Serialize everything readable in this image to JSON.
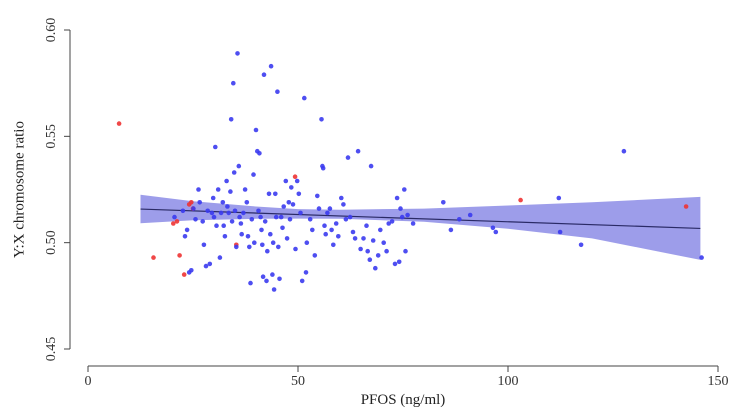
{
  "chart_data": {
    "type": "scatter",
    "xlabel": "PFOS (ng/ml)",
    "ylabel": "Y:X chromosome ratio",
    "xlim": [
      0,
      150
    ],
    "ylim": [
      0.45,
      0.6
    ],
    "xticks": [
      0,
      50,
      100,
      150
    ],
    "yticks": [
      0.45,
      0.5,
      0.55,
      0.6
    ],
    "xtick_labels": [
      "0",
      "50",
      "100",
      "150"
    ],
    "ytick_labels": [
      "0.45",
      "0.50",
      "0.55",
      "0.60"
    ],
    "grid": false,
    "colors": {
      "blue": "#3b3bf0",
      "red": "#ee3333",
      "band": "#8c8ce6",
      "line": "#2a2a66"
    },
    "series": [
      {
        "color": "red",
        "points": [
          [
            7.4,
            0.556
          ],
          [
            15.6,
            0.493
          ],
          [
            20.3,
            0.509
          ],
          [
            21.2,
            0.51
          ],
          [
            21.8,
            0.494
          ],
          [
            22.9,
            0.485
          ],
          [
            24.1,
            0.518
          ],
          [
            24.6,
            0.519
          ],
          [
            25.0,
            0.516
          ],
          [
            35.3,
            0.499
          ],
          [
            49.3,
            0.531
          ],
          [
            103.0,
            0.52
          ],
          [
            142.4,
            0.517
          ]
        ]
      },
      {
        "color": "blue",
        "points": [
          [
            20.6,
            0.512
          ],
          [
            22.6,
            0.515
          ],
          [
            23.1,
            0.503
          ],
          [
            23.6,
            0.506
          ],
          [
            24.1,
            0.486
          ],
          [
            24.6,
            0.487
          ],
          [
            25.1,
            0.516
          ],
          [
            25.6,
            0.511
          ],
          [
            26.3,
            0.525
          ],
          [
            26.6,
            0.519
          ],
          [
            27.3,
            0.51
          ],
          [
            27.6,
            0.499
          ],
          [
            28.1,
            0.489
          ],
          [
            28.5,
            0.515
          ],
          [
            29.0,
            0.49
          ],
          [
            29.5,
            0.514
          ],
          [
            29.8,
            0.521
          ],
          [
            30.0,
            0.512
          ],
          [
            30.3,
            0.545
          ],
          [
            30.6,
            0.508
          ],
          [
            31.0,
            0.525
          ],
          [
            31.4,
            0.493
          ],
          [
            31.7,
            0.514
          ],
          [
            32.1,
            0.519
          ],
          [
            32.3,
            0.508
          ],
          [
            32.6,
            0.503
          ],
          [
            33.0,
            0.529
          ],
          [
            33.2,
            0.517
          ],
          [
            33.5,
            0.514
          ],
          [
            33.9,
            0.524
          ],
          [
            34.1,
            0.558
          ],
          [
            34.3,
            0.51
          ],
          [
            34.6,
            0.575
          ],
          [
            34.8,
            0.533
          ],
          [
            35.0,
            0.515
          ],
          [
            35.3,
            0.498
          ],
          [
            35.6,
            0.589
          ],
          [
            35.9,
            0.536
          ],
          [
            36.1,
            0.512
          ],
          [
            36.4,
            0.509
          ],
          [
            36.6,
            0.504
          ],
          [
            37.0,
            0.514
          ],
          [
            37.4,
            0.525
          ],
          [
            37.8,
            0.519
          ],
          [
            38.1,
            0.503
          ],
          [
            38.4,
            0.498
          ],
          [
            38.7,
            0.481
          ],
          [
            39.0,
            0.511
          ],
          [
            39.4,
            0.532
          ],
          [
            39.6,
            0.5
          ],
          [
            40.0,
            0.553
          ],
          [
            40.3,
            0.543
          ],
          [
            40.6,
            0.515
          ],
          [
            40.8,
            0.542
          ],
          [
            41.1,
            0.512
          ],
          [
            41.3,
            0.506
          ],
          [
            41.5,
            0.499
          ],
          [
            41.7,
            0.484
          ],
          [
            41.9,
            0.579
          ],
          [
            42.2,
            0.51
          ],
          [
            42.5,
            0.482
          ],
          [
            42.7,
            0.496
          ],
          [
            43.1,
            0.523
          ],
          [
            43.4,
            0.504
          ],
          [
            43.6,
            0.583
          ],
          [
            43.9,
            0.485
          ],
          [
            44.1,
            0.5
          ],
          [
            44.3,
            0.478
          ],
          [
            44.6,
            0.523
          ],
          [
            44.8,
            0.512
          ],
          [
            45.1,
            0.571
          ],
          [
            45.3,
            0.498
          ],
          [
            45.6,
            0.483
          ],
          [
            46.0,
            0.512
          ],
          [
            46.3,
            0.507
          ],
          [
            46.6,
            0.517
          ],
          [
            47.1,
            0.529
          ],
          [
            47.4,
            0.502
          ],
          [
            47.8,
            0.519
          ],
          [
            48.1,
            0.511
          ],
          [
            48.4,
            0.526
          ],
          [
            48.8,
            0.518
          ],
          [
            49.4,
            0.497
          ],
          [
            49.8,
            0.529
          ],
          [
            50.2,
            0.523
          ],
          [
            50.6,
            0.514
          ],
          [
            51.0,
            0.482
          ],
          [
            51.5,
            0.568
          ],
          [
            51.9,
            0.486
          ],
          [
            52.1,
            0.5
          ],
          [
            52.9,
            0.511
          ],
          [
            53.4,
            0.506
          ],
          [
            54.0,
            0.494
          ],
          [
            54.6,
            0.522
          ],
          [
            55.0,
            0.516
          ],
          [
            55.6,
            0.558
          ],
          [
            55.8,
            0.536
          ],
          [
            56.0,
            0.535
          ],
          [
            56.3,
            0.508
          ],
          [
            56.6,
            0.504
          ],
          [
            57.0,
            0.514
          ],
          [
            57.6,
            0.516
          ],
          [
            58.0,
            0.506
          ],
          [
            58.4,
            0.499
          ],
          [
            59.1,
            0.509
          ],
          [
            59.6,
            0.503
          ],
          [
            60.3,
            0.521
          ],
          [
            60.8,
            0.518
          ],
          [
            61.4,
            0.511
          ],
          [
            61.9,
            0.54
          ],
          [
            62.4,
            0.512
          ],
          [
            63.1,
            0.505
          ],
          [
            63.6,
            0.502
          ],
          [
            64.3,
            0.543
          ],
          [
            64.9,
            0.497
          ],
          [
            65.6,
            0.502
          ],
          [
            66.3,
            0.508
          ],
          [
            66.6,
            0.496
          ],
          [
            67.1,
            0.492
          ],
          [
            67.4,
            0.536
          ],
          [
            67.9,
            0.501
          ],
          [
            68.4,
            0.488
          ],
          [
            69.1,
            0.494
          ],
          [
            69.6,
            0.506
          ],
          [
            70.4,
            0.5
          ],
          [
            71.1,
            0.496
          ],
          [
            71.6,
            0.509
          ],
          [
            72.4,
            0.51
          ],
          [
            73.1,
            0.49
          ],
          [
            73.6,
            0.521
          ],
          [
            74.1,
            0.491
          ],
          [
            74.4,
            0.516
          ],
          [
            74.8,
            0.512
          ],
          [
            75.3,
            0.525
          ],
          [
            75.6,
            0.496
          ],
          [
            76.1,
            0.513
          ],
          [
            77.4,
            0.509
          ],
          [
            84.6,
            0.519
          ],
          [
            86.4,
            0.506
          ],
          [
            88.4,
            0.511
          ],
          [
            91.0,
            0.513
          ],
          [
            96.4,
            0.507
          ],
          [
            97.1,
            0.505
          ],
          [
            112.1,
            0.521
          ],
          [
            112.4,
            0.505
          ],
          [
            117.4,
            0.499
          ],
          [
            127.6,
            0.543
          ],
          [
            146.1,
            0.493
          ]
        ]
      }
    ],
    "fit": {
      "x": [
        12.5,
        145.8
      ],
      "y": [
        0.5158,
        0.5067
      ]
    },
    "band": {
      "x": [
        12.5,
        25,
        40,
        50,
        60,
        80,
        100,
        120,
        145.8
      ],
      "upper": [
        0.5225,
        0.5195,
        0.517,
        0.5158,
        0.5155,
        0.516,
        0.5175,
        0.519,
        0.5215
      ],
      "lower": [
        0.5091,
        0.5105,
        0.5112,
        0.5113,
        0.5112,
        0.5098,
        0.5065,
        0.502,
        0.4919
      ]
    }
  }
}
